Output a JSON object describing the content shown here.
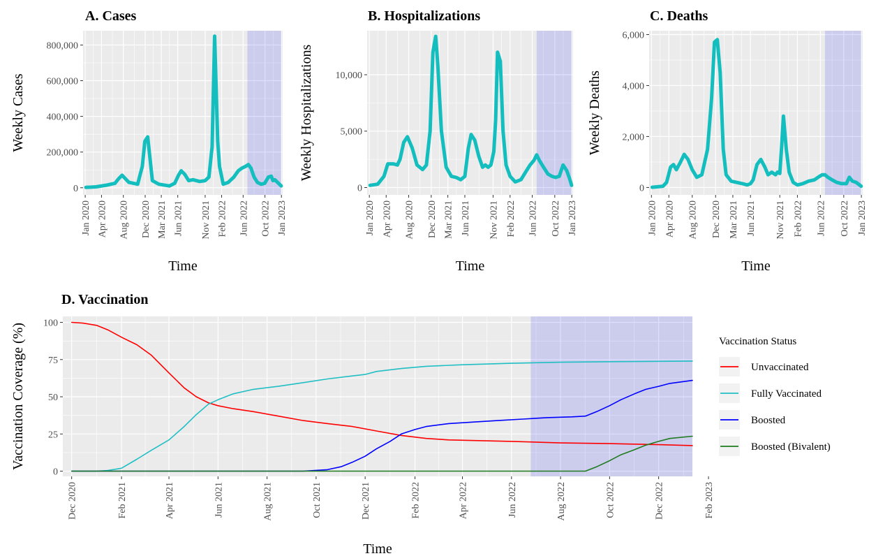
{
  "chart_data": [
    {
      "id": "A",
      "type": "line",
      "title": "A. Cases",
      "xlabel": "Time",
      "ylabel": "Weekly Cases",
      "x_range": [
        "2019-12-20",
        "2023-01-08"
      ],
      "ylim": [
        -40000,
        880000
      ],
      "y_ticks": [
        0,
        200000,
        400000,
        600000,
        800000
      ],
      "y_tick_labels": [
        "0",
        "200,000",
        "400,000",
        "600,000",
        "800,000"
      ],
      "x_ticks": [
        "2020-01-01",
        "2020-04-01",
        "2020-08-01",
        "2020-12-01",
        "2021-03-01",
        "2021-06-01",
        "2021-11-01",
        "2022-02-01",
        "2022-06-01",
        "2022-10-01",
        "2023-01-01"
      ],
      "x_tick_labels": [
        "Jan 2020",
        "Apr 2020",
        "Aug 2020",
        "Dec 2020",
        "Mar 2021",
        "Jun 2021",
        "Nov 2021",
        "Feb 2022",
        "Jun 2022",
        "Oct 2022",
        "Jan 2023"
      ],
      "shaded_region": [
        "2022-06-25",
        "2022-12-31"
      ],
      "series": [
        {
          "color": "#14BEBE",
          "x": [
            "2020-01-05",
            "2020-03-01",
            "2020-05-01",
            "2020-06-15",
            "2020-07-05",
            "2020-07-25",
            "2020-09-01",
            "2020-10-20",
            "2020-11-15",
            "2020-11-29",
            "2020-12-15",
            "2021-01-10",
            "2021-02-15",
            "2021-04-15",
            "2021-05-15",
            "2021-06-05",
            "2021-06-20",
            "2021-07-10",
            "2021-08-01",
            "2021-08-25",
            "2021-10-01",
            "2021-11-01",
            "2021-11-22",
            "2021-12-10",
            "2021-12-24",
            "2022-01-10",
            "2022-01-20",
            "2022-02-10",
            "2022-03-10",
            "2022-04-10",
            "2022-05-05",
            "2022-05-25",
            "2022-06-15",
            "2022-06-30",
            "2022-07-15",
            "2022-08-01",
            "2022-08-20",
            "2022-09-10",
            "2022-09-30",
            "2022-10-20",
            "2022-11-05",
            "2022-11-15",
            "2022-11-25",
            "2022-12-10",
            "2022-12-31"
          ],
          "y": [
            2000,
            5000,
            15000,
            25000,
            50000,
            70000,
            30000,
            20000,
            120000,
            260000,
            285000,
            40000,
            20000,
            10000,
            25000,
            70000,
            95000,
            75000,
            40000,
            45000,
            35000,
            40000,
            60000,
            230000,
            850000,
            260000,
            120000,
            20000,
            30000,
            60000,
            95000,
            110000,
            120000,
            130000,
            110000,
            60000,
            30000,
            20000,
            25000,
            60000,
            65000,
            40000,
            45000,
            30000,
            10000
          ]
        }
      ]
    },
    {
      "id": "B",
      "type": "line",
      "title": "B. Hospitalizations",
      "xlabel": "Time",
      "ylabel": "Weekly Hospitalizations",
      "x_range": [
        "2019-12-20",
        "2023-01-08"
      ],
      "ylim": [
        -650,
        13900
      ],
      "y_ticks": [
        0,
        5000,
        10000
      ],
      "y_tick_labels": [
        "0",
        "5,000",
        "10,000"
      ],
      "x_ticks": [
        "2020-01-01",
        "2020-04-01",
        "2020-08-01",
        "2020-12-01",
        "2021-03-01",
        "2021-06-01",
        "2021-11-01",
        "2022-02-01",
        "2022-06-01",
        "2022-10-01",
        "2023-01-01"
      ],
      "x_tick_labels": [
        "Jan 2020",
        "Apr 2020",
        "Aug 2020",
        "Dec 2020",
        "Mar 2021",
        "Jun 2021",
        "Nov 2021",
        "Feb 2022",
        "Jun 2022",
        "Oct 2022",
        "Jan 2023"
      ],
      "shaded_region": [
        "2022-06-25",
        "2022-12-31"
      ],
      "series": [
        {
          "color": "#14BEBE",
          "x": [
            "2020-01-05",
            "2020-02-15",
            "2020-03-20",
            "2020-04-10",
            "2020-05-10",
            "2020-06-01",
            "2020-06-15",
            "2020-07-05",
            "2020-07-25",
            "2020-08-20",
            "2020-09-15",
            "2020-10-15",
            "2020-11-05",
            "2020-11-25",
            "2020-12-10",
            "2020-12-25",
            "2021-01-05",
            "2021-01-25",
            "2021-02-20",
            "2021-03-20",
            "2021-04-15",
            "2021-05-10",
            "2021-06-01",
            "2021-06-20",
            "2021-07-05",
            "2021-07-25",
            "2021-08-15",
            "2021-09-05",
            "2021-09-20",
            "2021-10-05",
            "2021-10-20",
            "2021-11-05",
            "2021-11-15",
            "2021-11-25",
            "2021-12-10",
            "2021-12-25",
            "2022-01-10",
            "2022-02-01",
            "2022-03-01",
            "2022-04-01",
            "2022-05-01",
            "2022-05-20",
            "2022-06-10",
            "2022-06-25",
            "2022-07-10",
            "2022-08-01",
            "2022-08-25",
            "2022-09-15",
            "2022-10-05",
            "2022-10-25",
            "2022-11-15",
            "2022-12-05",
            "2022-12-20",
            "2022-12-31"
          ],
          "y": [
            200,
            300,
            1000,
            2100,
            2100,
            2000,
            2500,
            4000,
            4500,
            3500,
            2000,
            1600,
            2000,
            5000,
            12000,
            13400,
            11000,
            5000,
            1800,
            1000,
            900,
            700,
            1000,
            3500,
            4700,
            4200,
            2800,
            1800,
            2000,
            1800,
            2000,
            3200,
            6000,
            12000,
            11200,
            5000,
            2000,
            1000,
            500,
            700,
            1500,
            2000,
            2400,
            2900,
            2400,
            1800,
            1200,
            1000,
            900,
            1000,
            2000,
            1500,
            800,
            200
          ]
        }
      ]
    },
    {
      "id": "C",
      "type": "line",
      "title": "C. Deaths",
      "xlabel": "Time",
      "ylabel": "Weekly Deaths",
      "x_range": [
        "2019-12-20",
        "2023-01-08"
      ],
      "ylim": [
        -290,
        6150
      ],
      "y_ticks": [
        0,
        2000,
        4000,
        6000
      ],
      "y_tick_labels": [
        "0",
        "2,000",
        "4,000",
        "6,000"
      ],
      "x_ticks": [
        "2020-01-01",
        "2020-04-01",
        "2020-08-01",
        "2020-12-01",
        "2021-03-01",
        "2021-06-01",
        "2021-11-01",
        "2022-02-01",
        "2022-06-01",
        "2022-10-01",
        "2023-01-01"
      ],
      "x_tick_labels": [
        "Jan 2020",
        "Apr 2020",
        "Aug 2020",
        "Dec 2020",
        "Mar 2021",
        "Jun 2021",
        "Nov 2021",
        "Feb 2022",
        "Jun 2022",
        "Oct 2022",
        "Jan 2023"
      ],
      "shaded_region": [
        "2022-06-25",
        "2022-12-31"
      ],
      "series": [
        {
          "color": "#14BEBE",
          "x": [
            "2020-01-05",
            "2020-03-01",
            "2020-03-20",
            "2020-04-10",
            "2020-04-25",
            "2020-05-10",
            "2020-06-01",
            "2020-06-20",
            "2020-07-10",
            "2020-08-01",
            "2020-08-25",
            "2020-09-20",
            "2020-10-20",
            "2020-11-10",
            "2020-11-25",
            "2020-12-10",
            "2020-12-25",
            "2021-01-10",
            "2021-01-25",
            "2021-02-20",
            "2021-03-20",
            "2021-04-20",
            "2021-05-15",
            "2021-06-01",
            "2021-06-15",
            "2021-07-05",
            "2021-07-25",
            "2021-08-15",
            "2021-09-01",
            "2021-09-20",
            "2021-10-10",
            "2021-10-20",
            "2021-11-01",
            "2021-11-10",
            "2021-11-20",
            "2021-12-05",
            "2021-12-20",
            "2022-01-10",
            "2022-02-01",
            "2022-03-01",
            "2022-04-01",
            "2022-05-01",
            "2022-05-20",
            "2022-06-10",
            "2022-06-25",
            "2022-07-10",
            "2022-08-01",
            "2022-08-25",
            "2022-09-20",
            "2022-10-15",
            "2022-10-30",
            "2022-11-15",
            "2022-12-05",
            "2022-12-31"
          ],
          "y": [
            10,
            50,
            200,
            800,
            900,
            700,
            1000,
            1300,
            1100,
            700,
            400,
            500,
            1500,
            3500,
            5700,
            5800,
            4500,
            1500,
            500,
            250,
            200,
            150,
            100,
            150,
            300,
            900,
            1100,
            800,
            500,
            600,
            500,
            600,
            550,
            1500,
            2800,
            1500,
            600,
            200,
            100,
            150,
            250,
            300,
            400,
            500,
            500,
            400,
            300,
            200,
            150,
            150,
            400,
            250,
            200,
            50
          ]
        }
      ]
    },
    {
      "id": "D",
      "type": "line",
      "title": "D. Vaccination",
      "xlabel": "Time",
      "ylabel": "Vaccination Coverage (%)",
      "x_range": [
        "2020-11-20",
        "2023-01-12"
      ],
      "ylim": [
        -3.5,
        104
      ],
      "y_ticks": [
        0,
        25,
        50,
        75,
        100
      ],
      "y_tick_labels": [
        "0",
        "25",
        "50",
        "75",
        "100"
      ],
      "x_ticks": [
        "2020-12-01",
        "2021-02-01",
        "2021-04-01",
        "2021-06-01",
        "2021-08-01",
        "2021-10-01",
        "2021-12-01",
        "2022-02-01",
        "2022-04-01",
        "2022-06-01",
        "2022-08-01",
        "2022-10-01",
        "2022-12-01",
        "2023-02-01"
      ],
      "x_tick_labels": [
        "Dec 2020",
        "Feb 2021",
        "Apr 2021",
        "Jun 2021",
        "Aug 2021",
        "Oct 2021",
        "Dec 2021",
        "Feb 2022",
        "Apr 2022",
        "Jun 2022",
        "Aug 2022",
        "Oct 2022",
        "Dec 2022",
        "Feb 2023"
      ],
      "shaded_region": [
        "2022-06-25",
        "2023-01-12"
      ],
      "legend": {
        "title": "Vaccination Status",
        "placement": "right"
      },
      "series": [
        {
          "name": "Unvaccinated",
          "color": "#FF0000",
          "x": [
            "2020-12-01",
            "2020-12-15",
            "2021-01-01",
            "2021-01-15",
            "2021-02-01",
            "2021-02-20",
            "2021-03-10",
            "2021-04-01",
            "2021-04-20",
            "2021-05-05",
            "2021-05-20",
            "2021-06-01",
            "2021-06-20",
            "2021-07-15",
            "2021-08-15",
            "2021-09-15",
            "2021-10-15",
            "2021-11-15",
            "2021-12-15",
            "2022-01-15",
            "2022-02-15",
            "2022-03-15",
            "2022-06-01",
            "2022-08-01",
            "2022-10-01",
            "2022-12-01",
            "2023-01-12"
          ],
          "y": [
            100,
            99.5,
            98,
            95,
            90,
            85,
            78,
            66,
            56,
            50,
            46,
            44,
            42,
            40,
            37,
            34,
            32,
            30,
            27,
            24,
            22,
            21,
            20,
            19,
            18.5,
            17.8,
            17.2
          ]
        },
        {
          "name": "Fully Vaccinated",
          "color": "#1FBFC4",
          "x": [
            "2020-12-01",
            "2021-01-01",
            "2021-01-15",
            "2021-02-01",
            "2021-02-20",
            "2021-03-10",
            "2021-04-01",
            "2021-04-20",
            "2021-05-05",
            "2021-05-20",
            "2021-06-01",
            "2021-06-20",
            "2021-07-15",
            "2021-08-15",
            "2021-09-15",
            "2021-10-15",
            "2021-11-15",
            "2021-12-01",
            "2021-12-15",
            "2022-01-15",
            "2022-02-15",
            "2022-04-01",
            "2022-06-01",
            "2022-08-01",
            "2022-10-01",
            "2022-12-01",
            "2023-01-12"
          ],
          "y": [
            0,
            0,
            0.5,
            2,
            8,
            14,
            21,
            30,
            38,
            45,
            48,
            52,
            55,
            57,
            59.5,
            62,
            64,
            65,
            67,
            69,
            70.5,
            71.5,
            72.5,
            73.2,
            73.6,
            73.8,
            74
          ]
        },
        {
          "name": "Boosted",
          "color": "#0000FF",
          "x": [
            "2020-12-01",
            "2021-09-15",
            "2021-10-15",
            "2021-11-01",
            "2021-11-15",
            "2021-12-01",
            "2021-12-15",
            "2022-01-01",
            "2022-01-15",
            "2022-02-01",
            "2022-02-15",
            "2022-03-15",
            "2022-04-15",
            "2022-05-15",
            "2022-06-15",
            "2022-07-15",
            "2022-08-15",
            "2022-09-01",
            "2022-09-15",
            "2022-10-01",
            "2022-10-15",
            "2022-11-01",
            "2022-11-15",
            "2022-12-01",
            "2022-12-15",
            "2023-01-12"
          ],
          "y": [
            0,
            0,
            1,
            3,
            6,
            10,
            15,
            20,
            25,
            28,
            30,
            32,
            33,
            34,
            35,
            36,
            36.5,
            37,
            40,
            44,
            48,
            52,
            55,
            57,
            59,
            61
          ]
        },
        {
          "name": "Boosted (Bivalent)",
          "color": "#1E7B1E",
          "x": [
            "2020-12-01",
            "2022-09-01",
            "2022-09-15",
            "2022-10-01",
            "2022-10-15",
            "2022-11-01",
            "2022-11-15",
            "2022-12-01",
            "2022-12-15",
            "2023-01-12"
          ],
          "y": [
            0,
            0,
            3,
            7,
            11,
            14.5,
            17.5,
            20,
            22,
            23.5
          ]
        }
      ]
    }
  ]
}
